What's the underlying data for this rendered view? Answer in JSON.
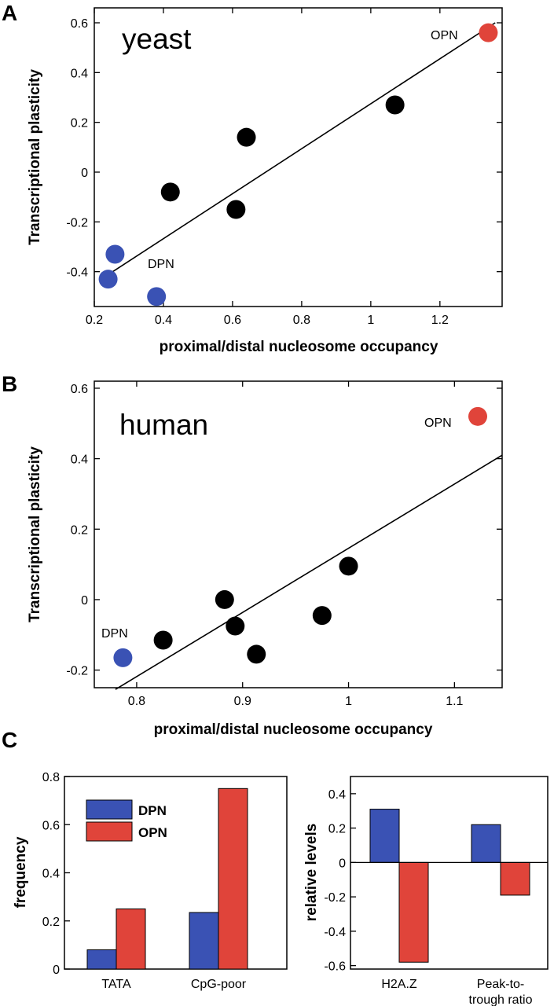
{
  "chart_data": [
    {
      "panel_letter": "A",
      "type": "scatter",
      "title": "yeast",
      "xlabel": "proximal/distal nucleosome occupancy",
      "ylabel": "Transcriptional plasticity",
      "xlim": [
        0.2,
        1.38
      ],
      "ylim": [
        -0.54,
        0.66
      ],
      "xticks": [
        0.2,
        0.4,
        0.6,
        0.8,
        1,
        1.2
      ],
      "xtick_labels": [
        "0.2",
        "0.4",
        "0.6",
        "0.8",
        "1",
        "1.2"
      ],
      "yticks": [
        -0.4,
        -0.2,
        0,
        0.2,
        0.4,
        0.6
      ],
      "ytick_labels": [
        "-0.4",
        "-0.2",
        "0",
        "0.2",
        "0.4",
        "0.6"
      ],
      "points": [
        {
          "x": 0.26,
          "y": -0.33,
          "group": "DPN"
        },
        {
          "x": 0.24,
          "y": -0.43,
          "group": "DPN"
        },
        {
          "x": 0.38,
          "y": -0.5,
          "group": "DPN"
        },
        {
          "x": 0.42,
          "y": -0.08,
          "group": "other"
        },
        {
          "x": 0.61,
          "y": -0.15,
          "group": "other"
        },
        {
          "x": 0.64,
          "y": 0.14,
          "group": "other"
        },
        {
          "x": 1.07,
          "y": 0.27,
          "group": "other"
        },
        {
          "x": 1.34,
          "y": 0.56,
          "group": "OPN"
        }
      ],
      "point_labels": [
        {
          "text": "OPN",
          "group": "OPN"
        },
        {
          "text": "DPN",
          "group": "DPN"
        }
      ],
      "fit_line": {
        "x": [
          0.22,
          1.36
        ],
        "y": [
          -0.43,
          0.6
        ]
      },
      "colors": {
        "DPN": "#3a52b4",
        "OPN": "#e0443a",
        "other": "#000000"
      }
    },
    {
      "panel_letter": "B",
      "type": "scatter",
      "title": "human",
      "xlabel": "proximal/distal nucleosome occupancy",
      "ylabel": "Transcriptional plasticity",
      "xlim": [
        0.76,
        1.145
      ],
      "ylim": [
        -0.25,
        0.62
      ],
      "xticks": [
        0.8,
        0.9,
        1,
        1.1
      ],
      "xtick_labels": [
        "0.8",
        "0.9",
        "1",
        "1.1"
      ],
      "yticks": [
        -0.2,
        0,
        0.2,
        0.4,
        0.6
      ],
      "ytick_labels": [
        "-0.2",
        "0",
        "0.2",
        "0.4",
        "0.6"
      ],
      "points": [
        {
          "x": 0.787,
          "y": -0.165,
          "group": "DPN"
        },
        {
          "x": 0.825,
          "y": -0.115,
          "group": "other"
        },
        {
          "x": 0.883,
          "y": 0.0,
          "group": "other"
        },
        {
          "x": 0.893,
          "y": -0.075,
          "group": "other"
        },
        {
          "x": 0.913,
          "y": -0.155,
          "group": "other"
        },
        {
          "x": 0.975,
          "y": -0.045,
          "group": "other"
        },
        {
          "x": 1.0,
          "y": 0.095,
          "group": "other"
        },
        {
          "x": 1.122,
          "y": 0.52,
          "group": "OPN"
        }
      ],
      "point_labels": [
        {
          "text": "OPN",
          "group": "OPN"
        },
        {
          "text": "DPN",
          "group": "DPN"
        }
      ],
      "fit_line": {
        "x": [
          0.78,
          1.145
        ],
        "y": [
          -0.255,
          0.41
        ]
      },
      "colors": {
        "DPN": "#3a52b4",
        "OPN": "#e0443a",
        "other": "#000000"
      }
    },
    {
      "panel_letter": "C",
      "type": "bar",
      "xlabel": "",
      "ylabel": "frequency",
      "categories": [
        "TATA",
        "CpG-poor"
      ],
      "series": [
        {
          "name": "DPN",
          "values": [
            0.08,
            0.235
          ],
          "color": "#3a52b4"
        },
        {
          "name": "OPN",
          "values": [
            0.25,
            0.75
          ],
          "color": "#e0443a"
        }
      ],
      "ylim": [
        0,
        0.8
      ],
      "yticks": [
        0,
        0.2,
        0.4,
        0.6,
        0.8
      ],
      "ytick_labels": [
        "0",
        "0.2",
        "0.4",
        "0.6",
        "0.8"
      ],
      "legend": "top-left"
    },
    {
      "type": "bar",
      "xlabel": "",
      "ylabel": "relative levels",
      "categories": [
        "H2A.Z",
        "Peak-to-\ntrough ratio"
      ],
      "series": [
        {
          "name": "DPN",
          "values": [
            0.31,
            0.22
          ],
          "color": "#3a52b4"
        },
        {
          "name": "OPN",
          "values": [
            -0.58,
            -0.19
          ],
          "color": "#e0443a"
        }
      ],
      "ylim": [
        -0.62,
        0.5
      ],
      "yticks": [
        -0.6,
        -0.4,
        -0.2,
        0,
        0.2,
        0.4
      ],
      "ytick_labels": [
        "-0.6",
        "-0.4",
        "-0.2",
        "0",
        "0.2",
        "0.4"
      ],
      "zero_line": true
    }
  ]
}
